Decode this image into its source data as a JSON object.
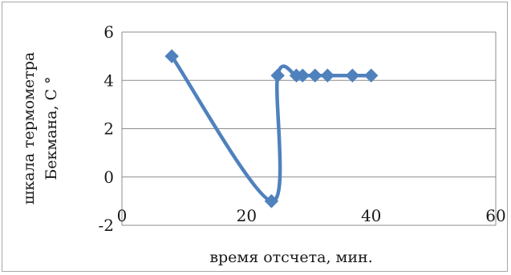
{
  "chart_data": {
    "type": "scatter",
    "title": "",
    "xlabel": "время отсчета,  мин.",
    "ylabel_lines": [
      "шкала термометра",
      "Бекмана, С °"
    ],
    "xlim": [
      0,
      60
    ],
    "ylim": [
      -2,
      6
    ],
    "x_ticks": [
      "0",
      "20",
      "40",
      "60"
    ],
    "y_ticks": [
      "-2",
      "0",
      "2",
      "4",
      "6"
    ],
    "grid": "horizontal",
    "legend": "none",
    "series": [
      {
        "color": "#4f81bd",
        "marker": "diamond",
        "smooth": true,
        "points": [
          {
            "x": 8,
            "y": 5
          },
          {
            "x": 24,
            "y": -1
          },
          {
            "x": 25,
            "y": 4.2
          },
          {
            "x": 28,
            "y": 4.2
          },
          {
            "x": 29,
            "y": 4.2
          },
          {
            "x": 31,
            "y": 4.2
          },
          {
            "x": 33,
            "y": 4.2
          },
          {
            "x": 37,
            "y": 4.2
          },
          {
            "x": 40,
            "y": 4.2
          }
        ]
      }
    ]
  }
}
